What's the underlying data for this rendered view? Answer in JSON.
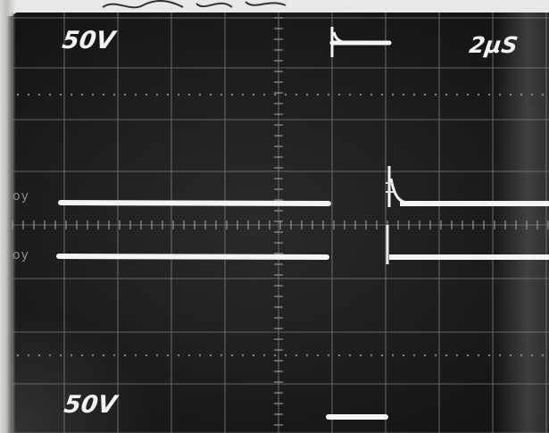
{
  "scope": {
    "top_left_label": "50V",
    "top_right_label": "2µS",
    "bottom_left_label": "50V",
    "channel_marker_1": "oy",
    "channel_marker_2": "oy"
  },
  "colors": {
    "trace": "#f4f4f4",
    "grid": "#8a8a8a",
    "screen": "#1c1c1c"
  }
}
